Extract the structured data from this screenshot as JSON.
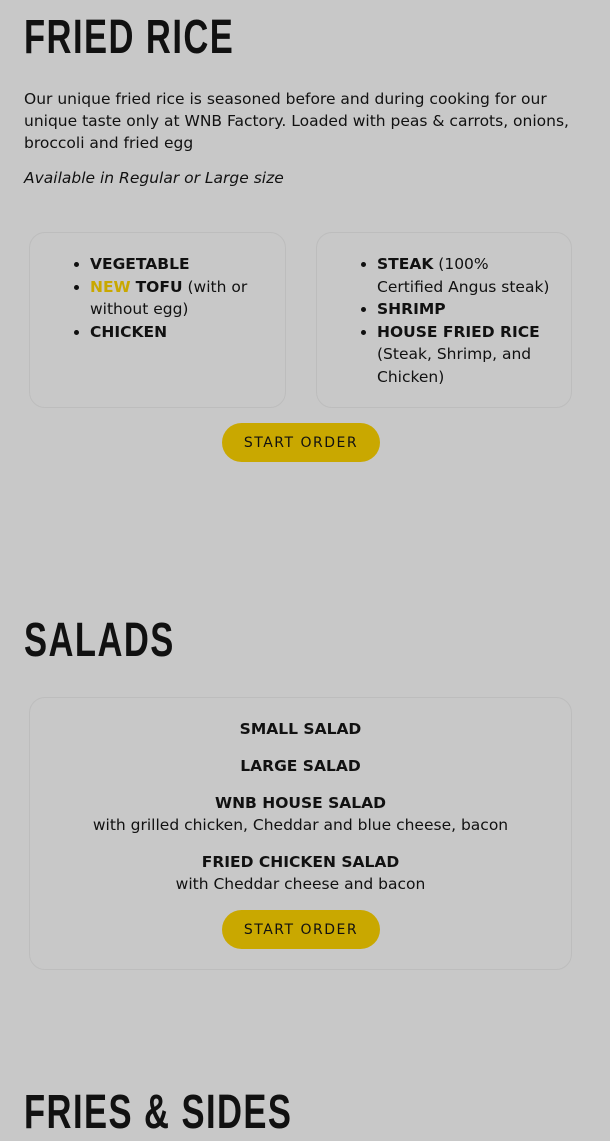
{
  "fried_rice": {
    "title": "FRIED RICE",
    "description": "Our unique fried rice is seasoned before and during cooking for our unique taste only at WNB Factory. Loaded with peas & carrots, onions, broccoli and fried egg",
    "availability": "Available in Regular or Large size",
    "left_items": [
      {
        "badge": "",
        "name": "VEGETABLE",
        "note": ""
      },
      {
        "badge": "NEW",
        "name": "TOFU",
        "note": "(with or without egg)"
      },
      {
        "badge": "",
        "name": "CHICKEN",
        "note": ""
      }
    ],
    "right_items": [
      {
        "name": "STEAK",
        "note": "(100% Certified Angus steak)"
      },
      {
        "name": "SHRIMP",
        "note": ""
      },
      {
        "name": "HOUSE FRIED RICE",
        "note": "(Steak, Shrimp, and Chicken)"
      }
    ],
    "button": "START ORDER"
  },
  "salads": {
    "title": "SALADS",
    "items": [
      {
        "name": "SMALL SALAD",
        "note": ""
      },
      {
        "name": "LARGE SALAD",
        "note": ""
      },
      {
        "name": "WNB HOUSE SALAD",
        "note": "with grilled chicken, Cheddar and blue cheese, bacon"
      },
      {
        "name": "FRIED CHICKEN SALAD",
        "note": "with Cheddar cheese and bacon"
      }
    ],
    "button": "START ORDER"
  },
  "fries": {
    "title": "FRIES & SIDES"
  },
  "colors": {
    "background": "#c8c8c8",
    "accent": "#c9a800"
  }
}
